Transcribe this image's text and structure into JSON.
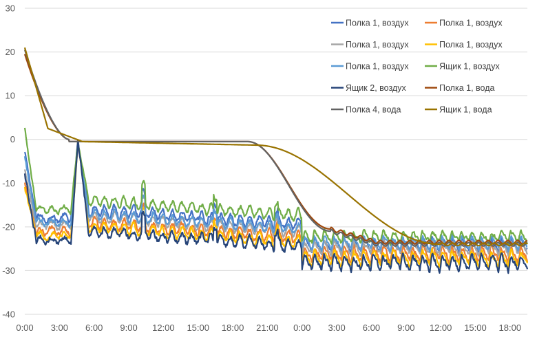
{
  "chart_data": {
    "type": "line",
    "ylim": [
      -40,
      30
    ],
    "yticks": [
      -40,
      -30,
      -20,
      -10,
      0,
      10,
      20,
      30
    ],
    "xlim": [
      0,
      43.5
    ],
    "xticks": [
      {
        "h": 0,
        "label": "0:00"
      },
      {
        "h": 3,
        "label": "3:00"
      },
      {
        "h": 6,
        "label": "6:00"
      },
      {
        "h": 9,
        "label": "9:00"
      },
      {
        "h": 12,
        "label": "12:00"
      },
      {
        "h": 15,
        "label": "15:00"
      },
      {
        "h": 18,
        "label": "18:00"
      },
      {
        "h": 21,
        "label": "21:00"
      },
      {
        "h": 24,
        "label": "0:00"
      },
      {
        "h": 27,
        "label": "3:00"
      },
      {
        "h": 30,
        "label": "6:00"
      },
      {
        "h": 33,
        "label": "9:00"
      },
      {
        "h": 36,
        "label": "12:00"
      },
      {
        "h": 39,
        "label": "15:00"
      },
      {
        "h": 42,
        "label": "18:00"
      }
    ],
    "grid": "horizontal",
    "legend_position": "top-right",
    "series": [
      {
        "name": "Полка 1, воздух",
        "color": "#4472C4",
        "kind": "air",
        "base": -17,
        "start": -3,
        "noise": 1.2,
        "end": -24.5,
        "amp": 3
      },
      {
        "name": "Полка 1, воздух",
        "color": "#ED7D31",
        "kind": "air",
        "base": -20,
        "start": -10,
        "noise": 1.3,
        "end": -26.5,
        "amp": 3.5
      },
      {
        "name": "Полка 1, воздух",
        "color": "#A5A5A5",
        "kind": "air",
        "base": -18.5,
        "start": -7,
        "noise": 1.2,
        "end": -25,
        "amp": 3
      },
      {
        "name": "Полка 1, воздух",
        "color": "#FFC000",
        "kind": "air",
        "base": -21,
        "start": -11,
        "noise": 1.3,
        "end": -27.5,
        "amp": 3.5
      },
      {
        "name": "Полка 1, воздух",
        "color": "#5B9BD5",
        "kind": "air",
        "base": -18,
        "start": -4,
        "noise": 1.2,
        "end": -24,
        "amp": 3
      },
      {
        "name": "Ящик 1, воздух",
        "color": "#70AD47",
        "kind": "air",
        "base": -15,
        "start": 2.5,
        "noise": 1.1,
        "end": -22.5,
        "amp": 2.5
      },
      {
        "name": "Ящик 2, воздух",
        "color": "#264478",
        "kind": "air",
        "base": -22,
        "start": -8,
        "noise": 1.4,
        "end": -28.5,
        "amp": 3.5
      },
      {
        "name": "Полка 1, вода",
        "color": "#9E480E",
        "kind": "water",
        "start": 19.5,
        "end": -23.5
      },
      {
        "name": "Полка 4, вода",
        "color": "#636363",
        "kind": "water",
        "start": 20.5,
        "end": -24
      },
      {
        "name": "Ящик 1, вода",
        "color": "#997300",
        "kind": "water_slow",
        "start": 21,
        "end": -24
      }
    ]
  }
}
